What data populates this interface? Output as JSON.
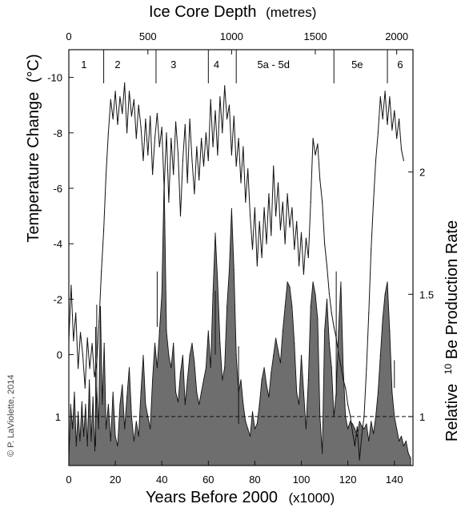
{
  "chart_data": {
    "type": "area",
    "title_top": "Ice Core Depth",
    "title_top_unit": "(metres)",
    "xlabel": "Years Before 2000",
    "xlabel_unit": "(x1000)",
    "ylabel_left": "Temperature Change",
    "ylabel_left_unit": "(°C)",
    "ylabel_right_prefix": "Relative",
    "ylabel_right_sup": "10",
    "ylabel_right_main": "Be Production Rate",
    "credit": "© P. LaViolette, 2014",
    "xlim": [
      0,
      148
    ],
    "x_ticks": [
      {
        "v": 0,
        "label": "0"
      },
      {
        "v": 20,
        "label": "20"
      },
      {
        "v": 40,
        "label": "40"
      },
      {
        "v": 60,
        "label": "60"
      },
      {
        "v": 80,
        "label": "80"
      },
      {
        "v": 100,
        "label": "100"
      },
      {
        "v": 120,
        "label": "120"
      },
      {
        "v": 140,
        "label": "140"
      }
    ],
    "depth_ticks": [
      {
        "v": 0,
        "label": "0"
      },
      {
        "v": 34,
        "label": "500"
      },
      {
        "v": 70,
        "label": "1000"
      },
      {
        "v": 106,
        "label": "1500"
      },
      {
        "v": 141,
        "label": "2000"
      }
    ],
    "temp_ylim": [
      -11,
      4
    ],
    "temp_ticks": [
      {
        "v": -10,
        "label": "-10"
      },
      {
        "v": -8,
        "label": "-8"
      },
      {
        "v": -6,
        "label": "-6"
      },
      {
        "v": -4,
        "label": "-4"
      },
      {
        "v": -2,
        "label": "-2"
      },
      {
        "v": 0,
        "label": "0"
      }
    ],
    "be_ylim": [
      0.8,
      2.5
    ],
    "be_ticks": [
      {
        "v": 1,
        "label": "1"
      },
      {
        "v": 1.5,
        "label": "1.5"
      },
      {
        "v": 2,
        "label": "2"
      }
    ],
    "be_ticks_left": [
      {
        "v": 1,
        "label": "1"
      }
    ],
    "be_reference": 1,
    "periods": [
      {
        "label": "1",
        "x": 6.5
      },
      {
        "label": "2",
        "x": 21
      },
      {
        "label": "3",
        "x": 45
      },
      {
        "label": "4",
        "x": 63.5
      },
      {
        "label": "5a - 5d",
        "x": 88
      },
      {
        "label": "5e",
        "x": 124
      },
      {
        "label": "6",
        "x": 142.5
      }
    ],
    "period_dividers": [
      15,
      37.5,
      60,
      72,
      114,
      137
    ],
    "temp_spikes": [
      {
        "x": 11.5,
        "top": -1,
        "bottom": 3.3
      },
      {
        "x": 12,
        "top": -1.8,
        "bottom": 1.5
      },
      {
        "x": 38,
        "top": -3,
        "bottom": -1
      },
      {
        "x": 63,
        "top": -2.3,
        "bottom": 0
      },
      {
        "x": 73,
        "top": -0.3,
        "bottom": 2.5
      },
      {
        "x": 115,
        "top": -3,
        "bottom": 1.5
      },
      {
        "x": 140,
        "top": 0.2,
        "bottom": 1.2
      }
    ],
    "temperature": [
      {
        "x": 0,
        "y": -0.5
      },
      {
        "x": 1,
        "y": -2.5
      },
      {
        "x": 2,
        "y": -0.5
      },
      {
        "x": 3,
        "y": -1.5
      },
      {
        "x": 4,
        "y": 0.5
      },
      {
        "x": 5,
        "y": -0.8
      },
      {
        "x": 6,
        "y": 0
      },
      {
        "x": 7,
        "y": 1.2
      },
      {
        "x": 8,
        "y": -0.6
      },
      {
        "x": 9,
        "y": 0.5
      },
      {
        "x": 10,
        "y": -0.4
      },
      {
        "x": 11,
        "y": 0.8
      },
      {
        "x": 12,
        "y": 0.3
      },
      {
        "x": 13,
        "y": -1.2
      },
      {
        "x": 14,
        "y": -3
      },
      {
        "x": 15,
        "y": -4.5
      },
      {
        "x": 16,
        "y": -6.5
      },
      {
        "x": 17,
        "y": -8
      },
      {
        "x": 18,
        "y": -9.2
      },
      {
        "x": 19,
        "y": -8.5
      },
      {
        "x": 20,
        "y": -9.5
      },
      {
        "x": 21,
        "y": -8.3
      },
      {
        "x": 22,
        "y": -9.3
      },
      {
        "x": 23,
        "y": -8.7
      },
      {
        "x": 24,
        "y": -9.8
      },
      {
        "x": 25,
        "y": -8
      },
      {
        "x": 26,
        "y": -9.5
      },
      {
        "x": 27,
        "y": -8.6
      },
      {
        "x": 28,
        "y": -9.2
      },
      {
        "x": 29,
        "y": -7.8
      },
      {
        "x": 30,
        "y": -9
      },
      {
        "x": 31,
        "y": -8.2
      },
      {
        "x": 32,
        "y": -7
      },
      {
        "x": 33,
        "y": -8.5
      },
      {
        "x": 34,
        "y": -7.2
      },
      {
        "x": 35,
        "y": -8.6
      },
      {
        "x": 36,
        "y": -6.5
      },
      {
        "x": 37,
        "y": -7.8
      },
      {
        "x": 38,
        "y": -8.7
      },
      {
        "x": 39,
        "y": -7.5
      },
      {
        "x": 40,
        "y": -8.2
      },
      {
        "x": 41,
        "y": -6
      },
      {
        "x": 42,
        "y": -8
      },
      {
        "x": 43,
        "y": -5.5
      },
      {
        "x": 44,
        "y": -7.8
      },
      {
        "x": 45,
        "y": -6.5
      },
      {
        "x": 46,
        "y": -8.4
      },
      {
        "x": 47,
        "y": -7.2
      },
      {
        "x": 48,
        "y": -5
      },
      {
        "x": 49,
        "y": -7
      },
      {
        "x": 50,
        "y": -8.3
      },
      {
        "x": 51,
        "y": -6.2
      },
      {
        "x": 52,
        "y": -8.5
      },
      {
        "x": 53,
        "y": -7
      },
      {
        "x": 54,
        "y": -5.8
      },
      {
        "x": 55,
        "y": -7.5
      },
      {
        "x": 56,
        "y": -6.3
      },
      {
        "x": 57,
        "y": -7.8
      },
      {
        "x": 58,
        "y": -6.8
      },
      {
        "x": 59,
        "y": -8
      },
      {
        "x": 60,
        "y": -7
      },
      {
        "x": 61,
        "y": -9.2
      },
      {
        "x": 62,
        "y": -7.5
      },
      {
        "x": 63,
        "y": -8.8
      },
      {
        "x": 64,
        "y": -7.2
      },
      {
        "x": 65,
        "y": -9.3
      },
      {
        "x": 66,
        "y": -8
      },
      {
        "x": 67,
        "y": -9.7
      },
      {
        "x": 68,
        "y": -8.5
      },
      {
        "x": 69,
        "y": -9
      },
      {
        "x": 70,
        "y": -7.2
      },
      {
        "x": 71,
        "y": -8.6
      },
      {
        "x": 72,
        "y": -6.8
      },
      {
        "x": 73,
        "y": -7.8
      },
      {
        "x": 74,
        "y": -6.2
      },
      {
        "x": 75,
        "y": -7.5
      },
      {
        "x": 76,
        "y": -5.5
      },
      {
        "x": 77,
        "y": -6.7
      },
      {
        "x": 78,
        "y": -5
      },
      {
        "x": 79,
        "y": -3.8
      },
      {
        "x": 80,
        "y": -5.3
      },
      {
        "x": 81,
        "y": -3.2
      },
      {
        "x": 82,
        "y": -4.8
      },
      {
        "x": 83,
        "y": -3.5
      },
      {
        "x": 84,
        "y": -5.3
      },
      {
        "x": 85,
        "y": -4
      },
      {
        "x": 86,
        "y": -5.8
      },
      {
        "x": 87,
        "y": -4.3
      },
      {
        "x": 88,
        "y": -6.8
      },
      {
        "x": 89,
        "y": -5
      },
      {
        "x": 90,
        "y": -6.2
      },
      {
        "x": 91,
        "y": -4.5
      },
      {
        "x": 92,
        "y": -5.5
      },
      {
        "x": 93,
        "y": -4
      },
      {
        "x": 94,
        "y": -5.8
      },
      {
        "x": 95,
        "y": -4.6
      },
      {
        "x": 96,
        "y": -5.3
      },
      {
        "x": 97,
        "y": -3.8
      },
      {
        "x": 98,
        "y": -4.8
      },
      {
        "x": 99,
        "y": -3.2
      },
      {
        "x": 100,
        "y": -4.4
      },
      {
        "x": 101,
        "y": -2.9
      },
      {
        "x": 102,
        "y": -4.2
      },
      {
        "x": 103,
        "y": -3.5
      },
      {
        "x": 104,
        "y": -5.5
      },
      {
        "x": 105,
        "y": -7.8
      },
      {
        "x": 106,
        "y": -7.2
      },
      {
        "x": 107,
        "y": -7.6
      },
      {
        "x": 108,
        "y": -6.3
      },
      {
        "x": 109,
        "y": -5.5
      },
      {
        "x": 110,
        "y": -4
      },
      {
        "x": 111,
        "y": -3.2
      },
      {
        "x": 112,
        "y": -2.2
      },
      {
        "x": 113,
        "y": -1.5
      },
      {
        "x": 114,
        "y": -1
      },
      {
        "x": 115,
        "y": -0.6
      },
      {
        "x": 116,
        "y": 0
      },
      {
        "x": 117,
        "y": 0.4
      },
      {
        "x": 118,
        "y": 0.9
      },
      {
        "x": 119,
        "y": 1.2
      },
      {
        "x": 120,
        "y": 1.8
      },
      {
        "x": 121,
        "y": 2.2
      },
      {
        "x": 122,
        "y": 2.8
      },
      {
        "x": 123,
        "y": 3.3
      },
      {
        "x": 124,
        "y": 2.6
      },
      {
        "x": 125,
        "y": 3.8
      },
      {
        "x": 126,
        "y": 2.9
      },
      {
        "x": 127,
        "y": 2.2
      },
      {
        "x": 128,
        "y": 0.5
      },
      {
        "x": 129,
        "y": -1.5
      },
      {
        "x": 130,
        "y": -3.8
      },
      {
        "x": 131,
        "y": -5.5
      },
      {
        "x": 132,
        "y": -7
      },
      {
        "x": 133,
        "y": -8
      },
      {
        "x": 134,
        "y": -9.3
      },
      {
        "x": 135,
        "y": -8.5
      },
      {
        "x": 136,
        "y": -9.5
      },
      {
        "x": 137,
        "y": -8.3
      },
      {
        "x": 138,
        "y": -9.3
      },
      {
        "x": 139,
        "y": -8.1
      },
      {
        "x": 140,
        "y": -8.8
      },
      {
        "x": 141,
        "y": -7.8
      },
      {
        "x": 142,
        "y": -8.5
      },
      {
        "x": 143,
        "y": -7.4
      },
      {
        "x": 144,
        "y": -7
      }
    ],
    "be10": [
      {
        "x": 0,
        "y": 0.82
      },
      {
        "x": 0.8,
        "y": 1.05
      },
      {
        "x": 1.6,
        "y": 0.95
      },
      {
        "x": 2.4,
        "y": 1.1
      },
      {
        "x": 3.2,
        "y": 0.88
      },
      {
        "x": 4,
        "y": 1.02
      },
      {
        "x": 4.8,
        "y": 0.9
      },
      {
        "x": 5.6,
        "y": 1.06
      },
      {
        "x": 6.4,
        "y": 0.92
      },
      {
        "x": 7.2,
        "y": 1.05
      },
      {
        "x": 8,
        "y": 0.88
      },
      {
        "x": 8.8,
        "y": 1.15
      },
      {
        "x": 9.6,
        "y": 0.9
      },
      {
        "x": 10.4,
        "y": 1.08
      },
      {
        "x": 11.2,
        "y": 0.86
      },
      {
        "x": 12,
        "y": 1.12
      },
      {
        "x": 12.8,
        "y": 0.95
      },
      {
        "x": 13.6,
        "y": 1.45
      },
      {
        "x": 14.4,
        "y": 1.05
      },
      {
        "x": 15.2,
        "y": 1.3
      },
      {
        "x": 16,
        "y": 0.95
      },
      {
        "x": 17,
        "y": 1.05
      },
      {
        "x": 18,
        "y": 0.9
      },
      {
        "x": 19,
        "y": 1.1
      },
      {
        "x": 20,
        "y": 0.92
      },
      {
        "x": 21,
        "y": 0.88
      },
      {
        "x": 22,
        "y": 1.05
      },
      {
        "x": 23,
        "y": 1.13
      },
      {
        "x": 24,
        "y": 0.95
      },
      {
        "x": 25,
        "y": 1.08
      },
      {
        "x": 26,
        "y": 1.2
      },
      {
        "x": 27,
        "y": 1.0
      },
      {
        "x": 28,
        "y": 0.9
      },
      {
        "x": 29,
        "y": 0.98
      },
      {
        "x": 30,
        "y": 0.92
      },
      {
        "x": 31,
        "y": 1.1
      },
      {
        "x": 32,
        "y": 1.25
      },
      {
        "x": 33,
        "y": 1.05
      },
      {
        "x": 34,
        "y": 1.0
      },
      {
        "x": 35,
        "y": 0.95
      },
      {
        "x": 36,
        "y": 1.15
      },
      {
        "x": 37,
        "y": 1.3
      },
      {
        "x": 38,
        "y": 1.2
      },
      {
        "x": 39,
        "y": 1.35
      },
      {
        "x": 40,
        "y": 1.5
      },
      {
        "x": 41,
        "y": 1.97
      },
      {
        "x": 42,
        "y": 1.35
      },
      {
        "x": 43,
        "y": 1.25
      },
      {
        "x": 44,
        "y": 1.2
      },
      {
        "x": 45,
        "y": 1.3
      },
      {
        "x": 46,
        "y": 1.1
      },
      {
        "x": 47,
        "y": 1.06
      },
      {
        "x": 48,
        "y": 1.18
      },
      {
        "x": 49,
        "y": 1.25
      },
      {
        "x": 50,
        "y": 1.05
      },
      {
        "x": 51,
        "y": 1.15
      },
      {
        "x": 52,
        "y": 1.25
      },
      {
        "x": 53,
        "y": 1.3
      },
      {
        "x": 54,
        "y": 1.22
      },
      {
        "x": 55,
        "y": 1.1
      },
      {
        "x": 56,
        "y": 1.05
      },
      {
        "x": 57,
        "y": 1.1
      },
      {
        "x": 58,
        "y": 1.15
      },
      {
        "x": 59,
        "y": 1.2
      },
      {
        "x": 60,
        "y": 1.35
      },
      {
        "x": 61,
        "y": 1.2
      },
      {
        "x": 62,
        "y": 1.5
      },
      {
        "x": 63,
        "y": 1.75
      },
      {
        "x": 64,
        "y": 1.55
      },
      {
        "x": 65,
        "y": 1.3
      },
      {
        "x": 66,
        "y": 1.15
      },
      {
        "x": 67,
        "y": 1.2
      },
      {
        "x": 68,
        "y": 1.45
      },
      {
        "x": 69,
        "y": 1.6
      },
      {
        "x": 70,
        "y": 1.85
      },
      {
        "x": 71,
        "y": 1.6
      },
      {
        "x": 72,
        "y": 1.25
      },
      {
        "x": 73,
        "y": 1.1
      },
      {
        "x": 74,
        "y": 1.15
      },
      {
        "x": 75,
        "y": 1.05
      },
      {
        "x": 76,
        "y": 0.98
      },
      {
        "x": 77,
        "y": 0.95
      },
      {
        "x": 78,
        "y": 0.92
      },
      {
        "x": 79,
        "y": 1.02
      },
      {
        "x": 80,
        "y": 0.95
      },
      {
        "x": 81,
        "y": 0.97
      },
      {
        "x": 82,
        "y": 1.05
      },
      {
        "x": 83,
        "y": 1.15
      },
      {
        "x": 84,
        "y": 1.2
      },
      {
        "x": 85,
        "y": 1.13
      },
      {
        "x": 86,
        "y": 1.08
      },
      {
        "x": 87,
        "y": 1.18
      },
      {
        "x": 88,
        "y": 1.25
      },
      {
        "x": 89,
        "y": 1.32
      },
      {
        "x": 90,
        "y": 1.27
      },
      {
        "x": 91,
        "y": 1.22
      },
      {
        "x": 92,
        "y": 1.35
      },
      {
        "x": 93,
        "y": 1.45
      },
      {
        "x": 94,
        "y": 1.55
      },
      {
        "x": 95,
        "y": 1.53
      },
      {
        "x": 96,
        "y": 1.45
      },
      {
        "x": 97,
        "y": 1.3
      },
      {
        "x": 98,
        "y": 1.1
      },
      {
        "x": 99,
        "y": 1.05
      },
      {
        "x": 100,
        "y": 1.25
      },
      {
        "x": 101,
        "y": 1.1
      },
      {
        "x": 102,
        "y": 0.95
      },
      {
        "x": 103,
        "y": 1.15
      },
      {
        "x": 104,
        "y": 1.45
      },
      {
        "x": 105,
        "y": 1.55
      },
      {
        "x": 106,
        "y": 1.5
      },
      {
        "x": 107,
        "y": 1.4
      },
      {
        "x": 108,
        "y": 1.0
      },
      {
        "x": 109,
        "y": 0.85
      },
      {
        "x": 110,
        "y": 1.35
      },
      {
        "x": 111,
        "y": 1.48
      },
      {
        "x": 112,
        "y": 1.3
      },
      {
        "x": 113,
        "y": 1.2
      },
      {
        "x": 114,
        "y": 1.0
      },
      {
        "x": 115,
        "y": 1.1
      },
      {
        "x": 116,
        "y": 1.35
      },
      {
        "x": 117,
        "y": 1.55
      },
      {
        "x": 118,
        "y": 1.2
      },
      {
        "x": 119,
        "y": 1.0
      },
      {
        "x": 120,
        "y": 0.95
      },
      {
        "x": 121,
        "y": 0.98
      },
      {
        "x": 122,
        "y": 0.97
      },
      {
        "x": 123,
        "y": 0.95
      },
      {
        "x": 124,
        "y": 0.92
      },
      {
        "x": 125,
        "y": 0.98
      },
      {
        "x": 126,
        "y": 0.96
      },
      {
        "x": 127,
        "y": 0.95
      },
      {
        "x": 128,
        "y": 0.97
      },
      {
        "x": 129,
        "y": 0.9
      },
      {
        "x": 130,
        "y": 0.98
      },
      {
        "x": 131,
        "y": 0.93
      },
      {
        "x": 132,
        "y": 1.0
      },
      {
        "x": 133,
        "y": 1.1
      },
      {
        "x": 134,
        "y": 1.25
      },
      {
        "x": 135,
        "y": 1.4
      },
      {
        "x": 136,
        "y": 1.5
      },
      {
        "x": 137,
        "y": 1.55
      },
      {
        "x": 138,
        "y": 1.35
      },
      {
        "x": 139,
        "y": 1.1
      },
      {
        "x": 140,
        "y": 1.0
      },
      {
        "x": 141,
        "y": 0.95
      },
      {
        "x": 142,
        "y": 0.9
      },
      {
        "x": 143,
        "y": 0.92
      },
      {
        "x": 144,
        "y": 0.88
      },
      {
        "x": 145,
        "y": 0.9
      },
      {
        "x": 146,
        "y": 0.85
      },
      {
        "x": 147,
        "y": 0.83
      }
    ],
    "colors": {
      "fill": "#6e6e6e",
      "stroke": "#111111",
      "line": "#111111",
      "reference": "#111111"
    }
  }
}
